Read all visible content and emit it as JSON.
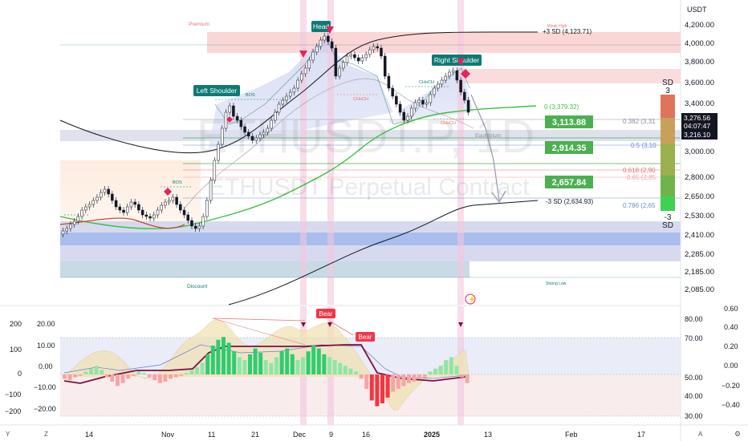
{
  "header": {
    "currency": "USDT"
  },
  "watermark": {
    "big": "ETHUSDT.P, 1D",
    "sub": "ETHUSDT Perpetual Contract"
  },
  "price_axis": {
    "ticks": [
      "4,200.00",
      "4,000.00",
      "3,800.00",
      "3,600.00",
      "3,400.00",
      "3,000.00",
      "2,800.00",
      "2,650.00",
      "2,530.00",
      "2,410.00",
      "2,285.00",
      "2,185.00",
      "2,085.00"
    ]
  },
  "current": {
    "price": "3,276.56",
    "countdown": "04:07:47",
    "second": "3,216.10"
  },
  "zones": {
    "premium": "Premium",
    "discount": "Discount",
    "equilibrium": "Equilibrium",
    "weak_high": "Weak High",
    "strong_low": "Strong Low"
  },
  "pattern": {
    "left_shoulder": "Left Shoulder",
    "head": "Head",
    "right_shoulder": "Right Shoulder"
  },
  "structure": {
    "bos": "BOS",
    "choch": "CHoCH"
  },
  "sd_levels": {
    "plus3": "+3 SD (4,123.71)",
    "zero": "0 (3,379.32)",
    "minus3": "-3 SD (2,634.93)"
  },
  "fib_levels": {
    "f0382": "0.382 (3,31",
    "f05": "0.5 (3,10",
    "f0618": "0.618 (2,90",
    "f065": "0.65 (2,85",
    "f0786": "0.786 (2,65"
  },
  "targets": {
    "t1": "3,113.88",
    "t2": "2,914.35",
    "t3": "2,657.84"
  },
  "sd_gauge": {
    "title": "SD",
    "top": "3",
    "bottom": "-3",
    "bottom_label": "SD"
  },
  "oscillator": {
    "left_ticks": [
      "200",
      "100",
      "0",
      "−100",
      "−200"
    ],
    "left2_ticks": [
      "20.00",
      "10.00",
      "0.00",
      "−10.00",
      "−20.00"
    ],
    "right_ticks": [
      "80.00",
      "70.00",
      "50.00",
      "40.00",
      "30.00"
    ],
    "far_right_ticks": [
      "0.60",
      "0.40",
      "0.20",
      "0.00",
      "−0.20",
      "−0.40"
    ],
    "bear1": "Bear",
    "bear2": "Bear"
  },
  "time_axis": {
    "labels": [
      "14",
      "Nov",
      "11",
      "21",
      "Dec",
      "9",
      "16",
      "2025",
      "13",
      "Feb",
      "17"
    ]
  },
  "footer": {
    "y_icon": "Y",
    "z_icon": "Z",
    "a_icon": "A"
  },
  "colors": {
    "green": "#4caf50",
    "red": "#f23645",
    "teal": "#0f7a74",
    "candle_bull": "#ffffff",
    "candle_bear": "#131722"
  }
}
